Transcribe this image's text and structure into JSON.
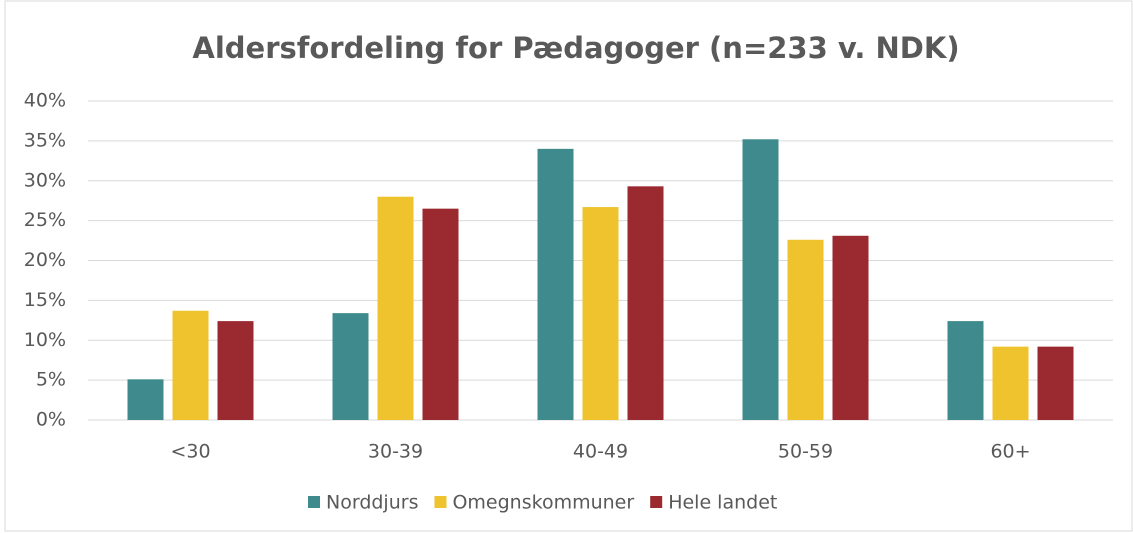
{
  "chart_data": {
    "type": "bar",
    "title": "Aldersfordeling for Pædagoger (n=233 v. NDK)",
    "categories": [
      "<30",
      "30-39",
      "40-49",
      "50-59",
      "60+"
    ],
    "series": [
      {
        "name": "Norddjurs",
        "color": "#3f8a8c",
        "values": [
          5.1,
          13.4,
          34.0,
          35.2,
          12.4
        ]
      },
      {
        "name": "Omegnskommuner",
        "color": "#eec32e",
        "values": [
          13.7,
          28.0,
          26.7,
          22.6,
          9.2
        ]
      },
      {
        "name": "Hele landet",
        "color": "#9b2a30",
        "values": [
          12.4,
          26.5,
          29.3,
          23.1,
          9.2
        ]
      }
    ],
    "ylim": [
      0,
      40
    ],
    "yticks": [
      {
        "value": 0,
        "label": "0%"
      },
      {
        "value": 5,
        "label": "5%"
      },
      {
        "value": 10,
        "label": "10%"
      },
      {
        "value": 15,
        "label": "15%"
      },
      {
        "value": 20,
        "label": "20%"
      },
      {
        "value": 25,
        "label": "25%"
      },
      {
        "value": 30,
        "label": "30%"
      },
      {
        "value": 35,
        "label": "35%"
      },
      {
        "value": 40,
        "label": "40%"
      }
    ],
    "grid": true,
    "legend": "bottom"
  }
}
